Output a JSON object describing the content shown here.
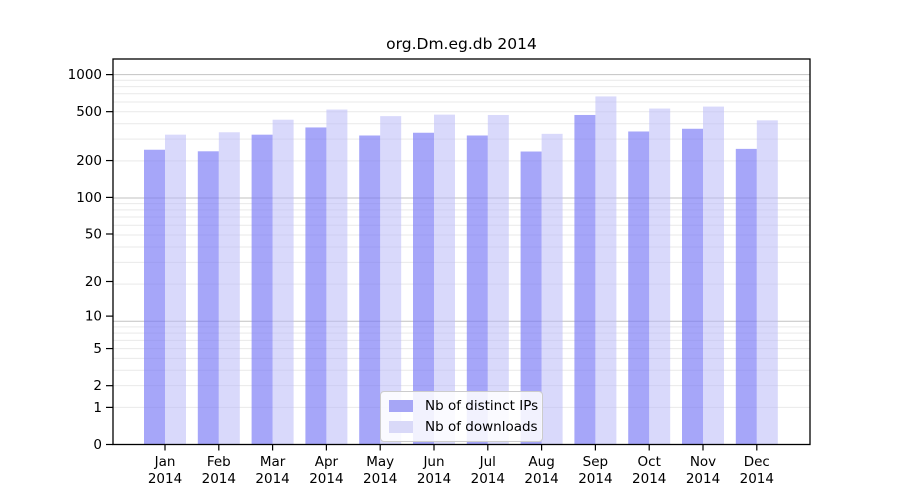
{
  "chart_data": {
    "type": "bar",
    "title": "org.Dm.eg.db 2014",
    "categories": [
      "Jan",
      "Feb",
      "Mar",
      "Apr",
      "May",
      "Jun",
      "Jul",
      "Aug",
      "Sep",
      "Oct",
      "Nov",
      "Dec"
    ],
    "year_label": "2014",
    "series": [
      {
        "name": "Nb of distinct IPs",
        "color": "#7878f6",
        "opacity": 0.66,
        "swatch_color": "#a6a6f6",
        "values": [
          245,
          238,
          325,
          372,
          320,
          337,
          320,
          237,
          470,
          345,
          363,
          249
        ]
      },
      {
        "name": "Nb of downloads",
        "color": "#babaf8",
        "opacity": 0.55,
        "swatch_color": "#d9d9f8",
        "values": [
          325,
          340,
          430,
          520,
          460,
          473,
          470,
          330,
          665,
          530,
          550,
          425
        ]
      }
    ],
    "y_axis": {
      "scale": "log1p",
      "ticks": [
        0,
        1,
        2,
        5,
        10,
        20,
        50,
        100,
        200,
        500,
        1000
      ],
      "range_top": 1200
    },
    "grid": {
      "show": true,
      "minor_color": "#e9e9e9",
      "major_color": "#c2c2c2"
    },
    "axis_color": "#000000",
    "text_color": "#000000",
    "legend_position": "inside-bottom-center"
  }
}
